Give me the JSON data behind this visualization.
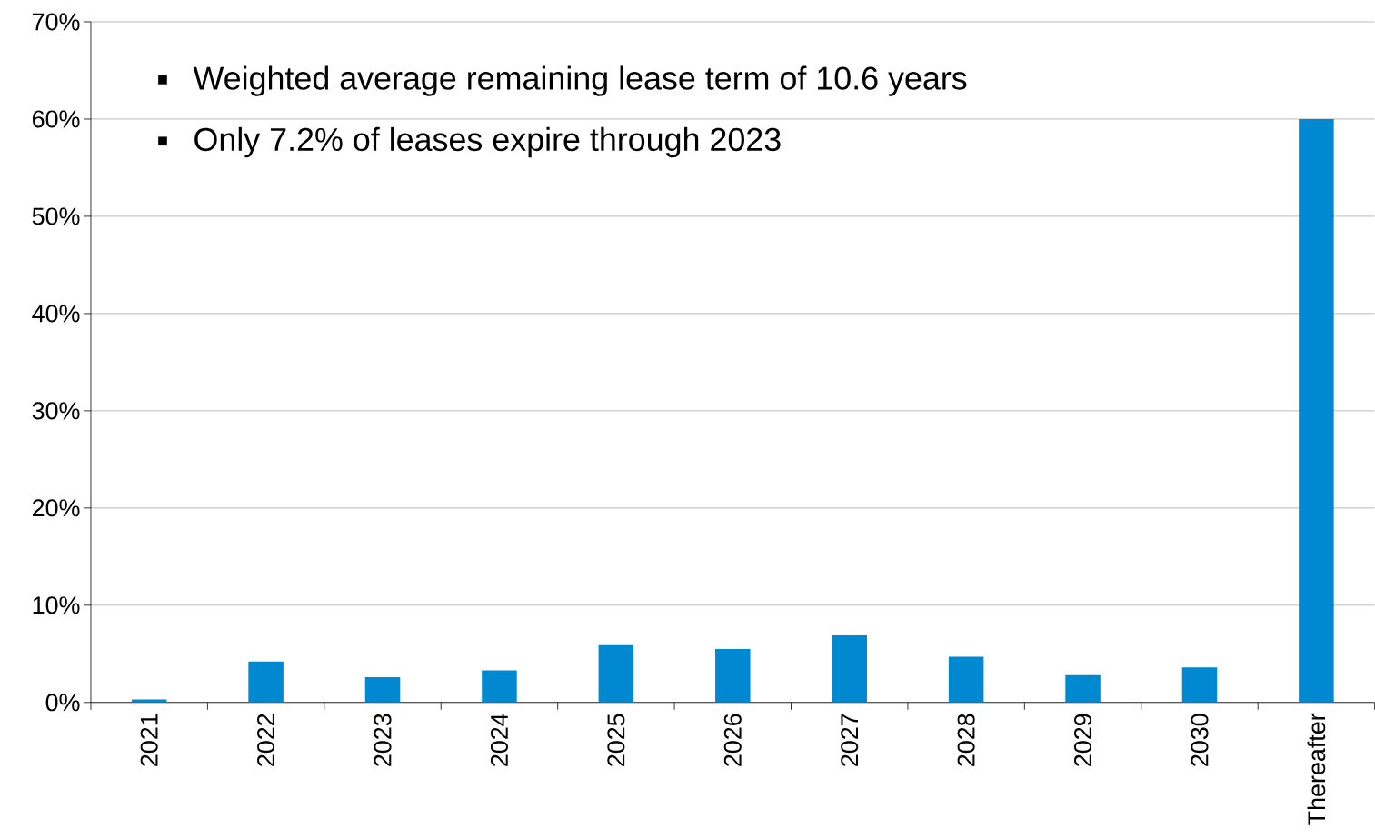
{
  "chart_data": {
    "type": "bar",
    "categories": [
      "2021",
      "2022",
      "2023",
      "2024",
      "2025",
      "2026",
      "2027",
      "2028",
      "2029",
      "2030",
      "Thereafter"
    ],
    "values": [
      0.3,
      4.2,
      2.6,
      3.3,
      5.9,
      5.5,
      6.9,
      4.7,
      2.8,
      3.6,
      60
    ],
    "color": "#0088d1",
    "ylim": [
      0,
      70
    ],
    "yticks": [
      {
        "value": 0,
        "label": "0%"
      },
      {
        "value": 10,
        "label": "10%"
      },
      {
        "value": 20,
        "label": "20%"
      },
      {
        "value": 30,
        "label": "30%"
      },
      {
        "value": 40,
        "label": "40%"
      },
      {
        "value": 50,
        "label": "50%"
      },
      {
        "value": 60,
        "label": "60%"
      },
      {
        "value": 70,
        "label": "70%"
      }
    ],
    "grid": "y",
    "annotations": [
      "Weighted average remaining lease term of 10.6 years",
      "Only 7.2% of leases expire through 2023"
    ]
  }
}
